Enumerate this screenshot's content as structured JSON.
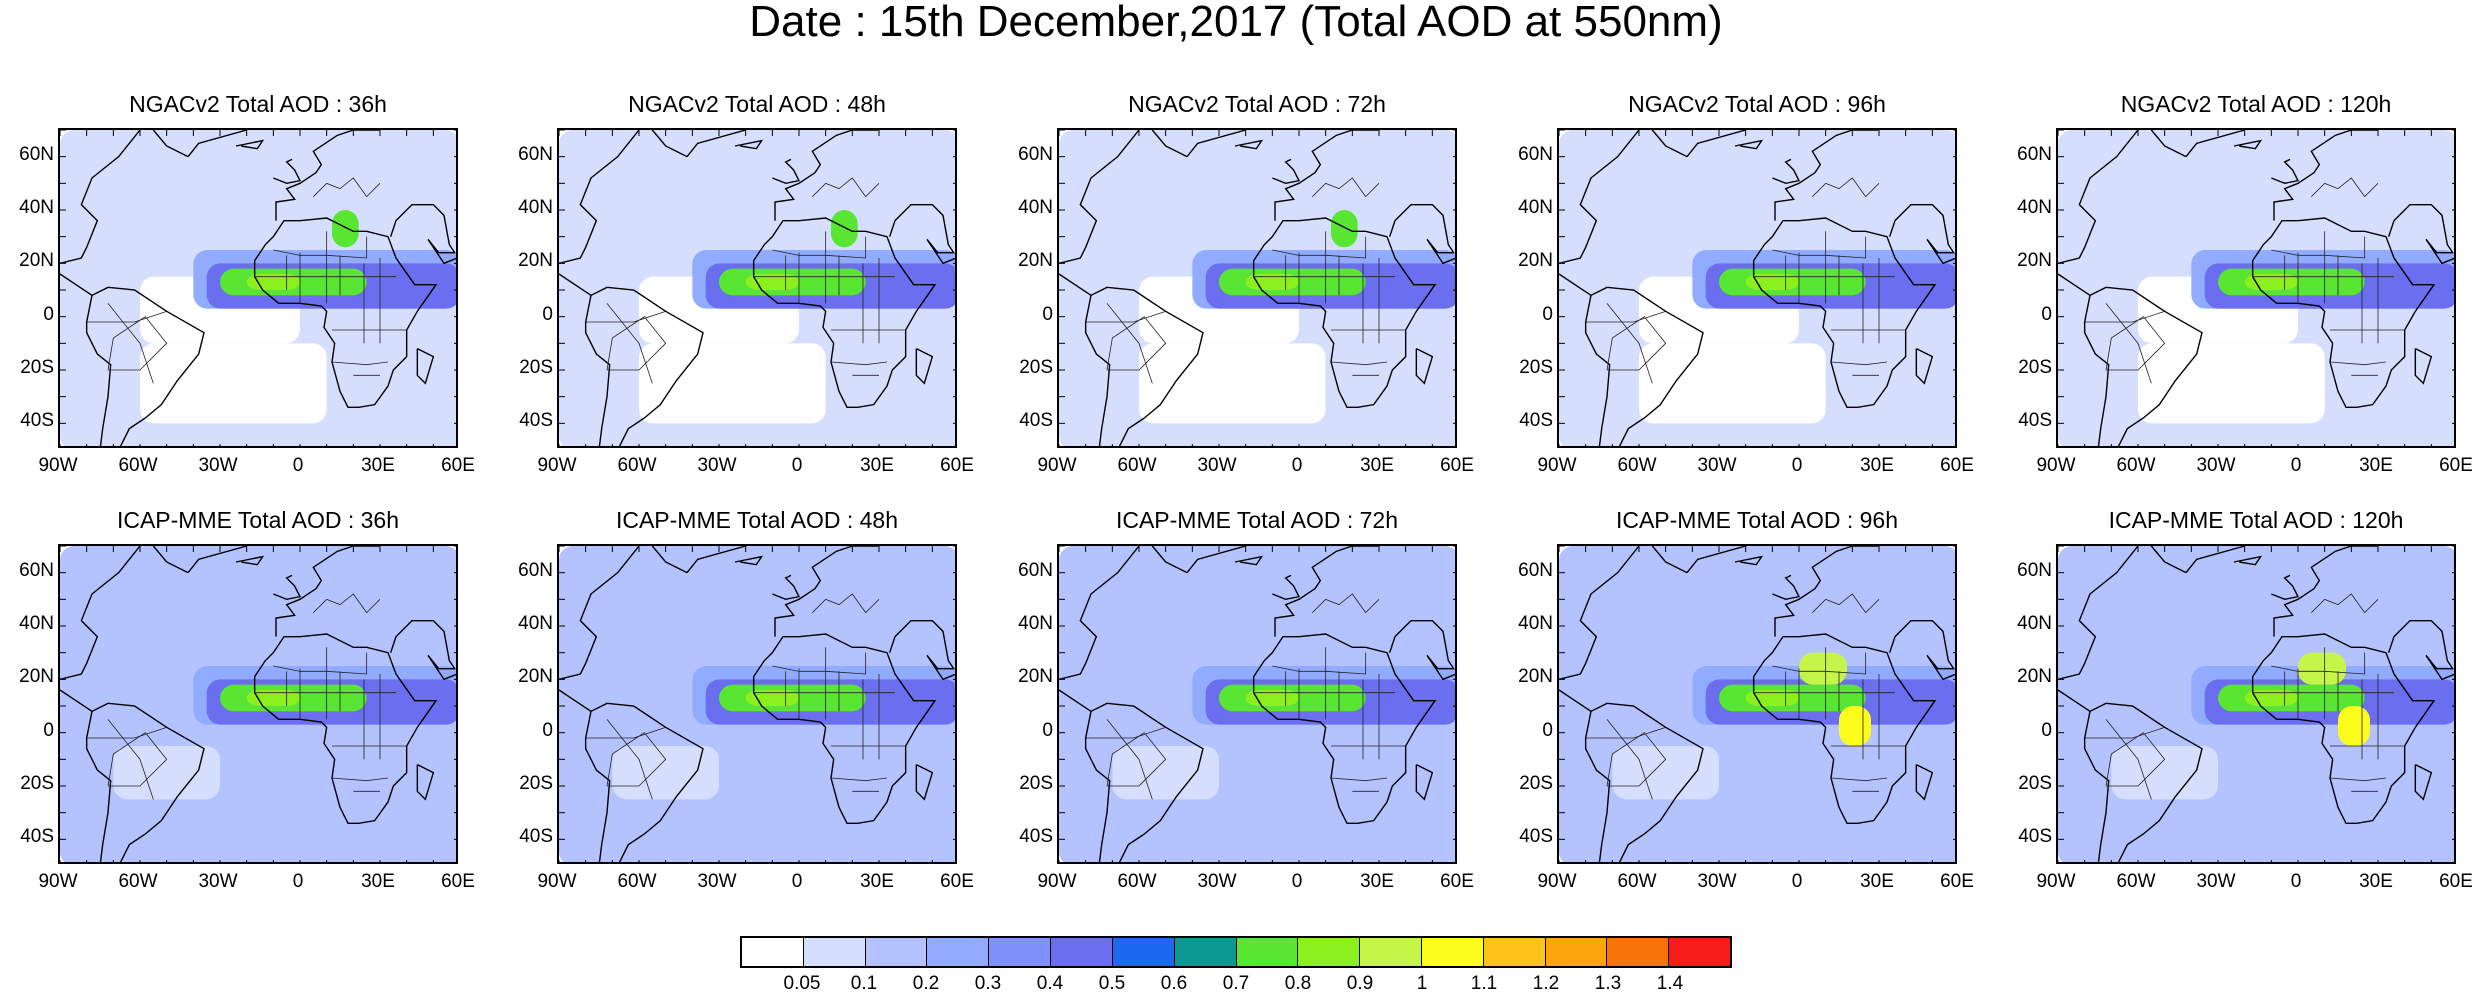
{
  "title": "Date : 15th December,2017 (Total AOD at 550nm)",
  "panels": [
    {
      "title": "NGACv2 Total AOD : 36h"
    },
    {
      "title": "NGACv2 Total AOD : 48h"
    },
    {
      "title": "NGACv2 Total AOD : 72h"
    },
    {
      "title": "NGACv2 Total AOD : 96h"
    },
    {
      "title": "NGACv2 Total AOD : 120h"
    },
    {
      "title": "ICAP-MME Total AOD : 36h"
    },
    {
      "title": "ICAP-MME Total AOD : 48h"
    },
    {
      "title": "ICAP-MME Total AOD : 72h"
    },
    {
      "title": "ICAP-MME Total AOD : 96h"
    },
    {
      "title": "ICAP-MME Total AOD : 120h"
    }
  ],
  "map": {
    "lon_range": [
      -90,
      60
    ],
    "lat_range": [
      -50,
      70
    ],
    "x_ticks": [
      {
        "value": -90,
        "label": "90W"
      },
      {
        "value": -60,
        "label": "60W"
      },
      {
        "value": -30,
        "label": "30W"
      },
      {
        "value": 0,
        "label": "0"
      },
      {
        "value": 30,
        "label": "30E"
      },
      {
        "value": 60,
        "label": "60E"
      }
    ],
    "y_ticks": [
      {
        "value": 60,
        "label": "60N"
      },
      {
        "value": 40,
        "label": "40N"
      },
      {
        "value": 20,
        "label": "20N"
      },
      {
        "value": 0,
        "label": "0"
      },
      {
        "value": -20,
        "label": "20S"
      },
      {
        "value": -40,
        "label": "40S"
      }
    ]
  },
  "colorbar": {
    "colors": [
      "#ffffff",
      "#d6defe",
      "#b4c3fe",
      "#91acfe",
      "#7f91fb",
      "#6b6eef",
      "#1c68ee",
      "#0a9a93",
      "#58e632",
      "#8cf01e",
      "#c4f548",
      "#fdfd1c",
      "#fcc21a",
      "#fca50c",
      "#f8730a",
      "#f71c17"
    ],
    "labels": [
      "0.05",
      "0.1",
      "0.2",
      "0.3",
      "0.4",
      "0.5",
      "0.6",
      "0.7",
      "0.8",
      "0.9",
      "1",
      "1.1",
      "1.2",
      "1.3",
      "1.4"
    ]
  }
}
